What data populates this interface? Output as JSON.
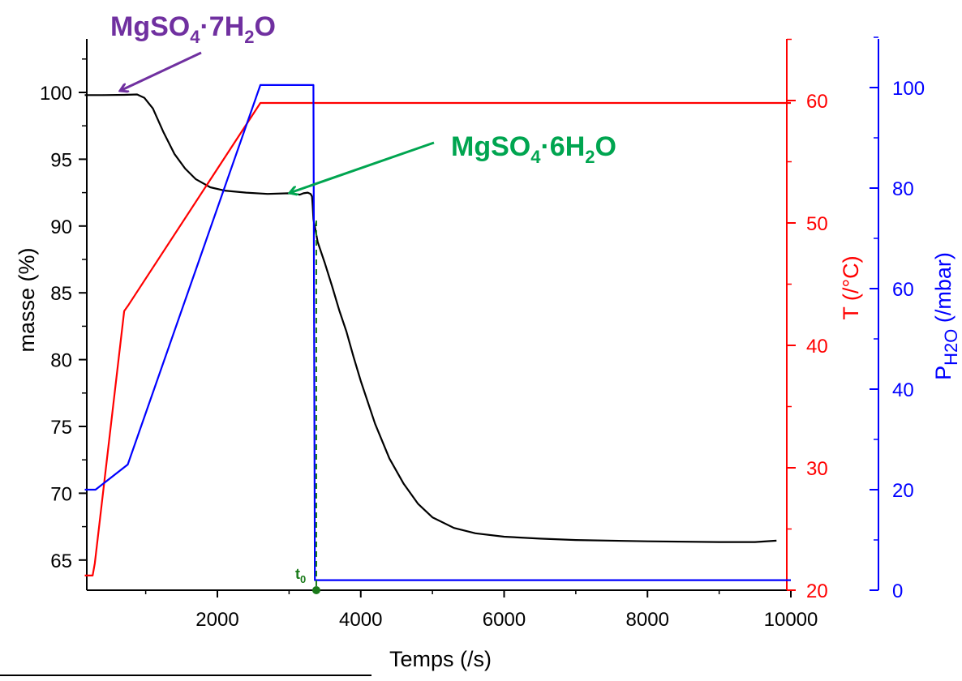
{
  "chart_data": {
    "type": "line",
    "xlabel": "Temps (/s)",
    "x_ticks": [
      2000,
      4000,
      6000,
      8000,
      10000
    ],
    "xlim": [
      150,
      10000
    ],
    "y_left": {
      "label": "masse (%)",
      "ticks": [
        65,
        70,
        75,
        80,
        85,
        90,
        95,
        100
      ],
      "lim": [
        63,
        104
      ],
      "color": "#000000"
    },
    "y_right_T": {
      "label": "T (/°C)",
      "ticks": [
        20,
        30,
        40,
        50,
        60
      ],
      "lim": [
        20,
        65
      ],
      "color": "#ff0000"
    },
    "y_right_P": {
      "label_main": "P",
      "label_sub": "H2O",
      "label_unit": " (/mbar)",
      "ticks": [
        0,
        20,
        40,
        60,
        80,
        100
      ],
      "lim": [
        0,
        110
      ],
      "color": "#0000ff"
    },
    "series": [
      {
        "axis": "mass",
        "color": "#000000",
        "points": [
          [
            150,
            99.8
          ],
          [
            400,
            99.8
          ],
          [
            700,
            99.82
          ],
          [
            880,
            99.85
          ],
          [
            980,
            99.6
          ],
          [
            1100,
            98.8
          ],
          [
            1250,
            97.0
          ],
          [
            1400,
            95.4
          ],
          [
            1550,
            94.3
          ],
          [
            1700,
            93.5
          ],
          [
            1900,
            92.9
          ],
          [
            2100,
            92.65
          ],
          [
            2400,
            92.5
          ],
          [
            2700,
            92.4
          ],
          [
            3000,
            92.45
          ],
          [
            3150,
            92.35
          ],
          [
            3200,
            92.45
          ],
          [
            3260,
            92.5
          ],
          [
            3300,
            92.4
          ],
          [
            3320,
            92.2
          ],
          [
            3330,
            91.5
          ],
          [
            3340,
            90.5
          ],
          [
            3400,
            88.8
          ],
          [
            3500,
            87.2
          ],
          [
            3600,
            85.5
          ],
          [
            3700,
            83.7
          ],
          [
            3800,
            82.1
          ],
          [
            3900,
            80.2
          ],
          [
            4000,
            78.4
          ],
          [
            4200,
            75.2
          ],
          [
            4400,
            72.6
          ],
          [
            4600,
            70.7
          ],
          [
            4800,
            69.2
          ],
          [
            5000,
            68.2
          ],
          [
            5300,
            67.4
          ],
          [
            5600,
            67.0
          ],
          [
            6000,
            66.75
          ],
          [
            6500,
            66.6
          ],
          [
            7000,
            66.5
          ],
          [
            8000,
            66.4
          ],
          [
            9000,
            66.35
          ],
          [
            9500,
            66.35
          ],
          [
            9800,
            66.45
          ]
        ]
      },
      {
        "axis": "T",
        "color": "#ff0000",
        "points": [
          [
            150,
            21.2
          ],
          [
            260,
            21.2
          ],
          [
            290,
            22.2
          ],
          [
            700,
            42.8
          ],
          [
            760,
            43.3
          ],
          [
            2600,
            59.8
          ],
          [
            10000,
            59.8
          ]
        ]
      },
      {
        "axis": "P",
        "color": "#0000ff",
        "points": [
          [
            150,
            20
          ],
          [
            300,
            20
          ],
          [
            750,
            25
          ],
          [
            2600,
            100.5
          ],
          [
            3340,
            100.5
          ],
          [
            3360,
            2
          ],
          [
            10000,
            2
          ]
        ]
      }
    ],
    "t0": {
      "label": "t",
      "sub": "0",
      "x": 3380,
      "color": "#1a7a1a"
    },
    "annotations": [
      {
        "id": "hepta",
        "main": "MgSO",
        "s1": "4",
        "mid": "·7H",
        "s2": "2",
        "end": "O",
        "color": "#7030a0"
      },
      {
        "id": "hexa",
        "main": "MgSO",
        "s1": "4",
        "mid": "·6H",
        "s2": "2",
        "end": "O",
        "color": "#00a550"
      }
    ]
  }
}
